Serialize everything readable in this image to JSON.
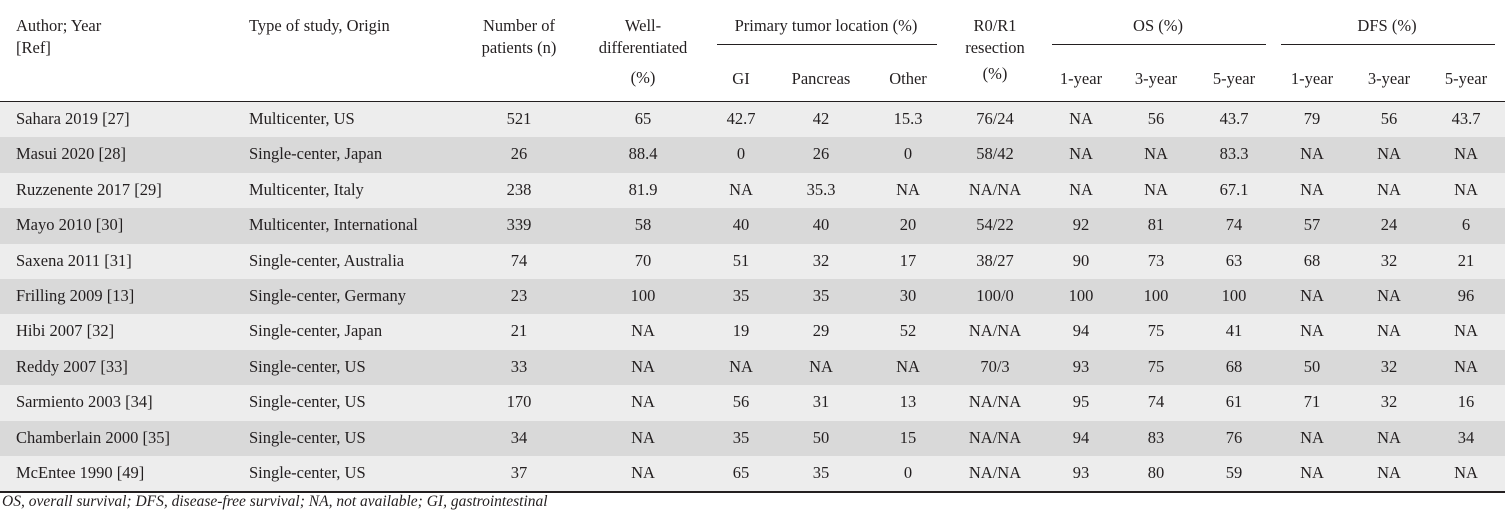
{
  "header": {
    "author_line1": "Author; Year",
    "author_line2": "[Ref]",
    "type": "Type of study, Origin",
    "npat_line1": "Number of",
    "npat_line2": "patients (n)",
    "well_line1": "Well-",
    "well_line2": "differentiated",
    "well_line3": "(%)",
    "ptl": "Primary tumor location (%)",
    "ptl_gi": "GI",
    "ptl_pancreas": "Pancreas",
    "ptl_other": "Other",
    "r0_line1": "R0/R1",
    "r0_line2": "resection",
    "r0_line3": "(%)",
    "os": "OS (%)",
    "os_1": "1-year",
    "os_3": "3-year",
    "os_5": "5-year",
    "dfs": "DFS (%)",
    "dfs_1": "1-year",
    "dfs_3": "3-year",
    "dfs_5": "5-year"
  },
  "rows": [
    [
      "Sahara 2019 [27]",
      "Multicenter, US",
      "521",
      "65",
      "42.7",
      "42",
      "15.3",
      "76/24",
      "NA",
      "56",
      "43.7",
      "79",
      "56",
      "43.7"
    ],
    [
      "Masui 2020 [28]",
      "Single-center, Japan",
      "26",
      "88.4",
      "0",
      "26",
      "0",
      "58/42",
      "NA",
      "NA",
      "83.3",
      "NA",
      "NA",
      "NA"
    ],
    [
      "Ruzzenente 2017 [29]",
      "Multicenter, Italy",
      "238",
      "81.9",
      "NA",
      "35.3",
      "NA",
      "NA/NA",
      "NA",
      "NA",
      "67.1",
      "NA",
      "NA",
      "NA"
    ],
    [
      "Mayo 2010 [30]",
      "Multicenter, International",
      "339",
      "58",
      "40",
      "40",
      "20",
      "54/22",
      "92",
      "81",
      "74",
      "57",
      "24",
      "6"
    ],
    [
      "Saxena 2011 [31]",
      "Single-center, Australia",
      "74",
      "70",
      "51",
      "32",
      "17",
      "38/27",
      "90",
      "73",
      "63",
      "68",
      "32",
      "21"
    ],
    [
      "Frilling 2009 [13]",
      "Single-center, Germany",
      "23",
      "100",
      "35",
      "35",
      "30",
      "100/0",
      "100",
      "100",
      "100",
      "NA",
      "NA",
      "96"
    ],
    [
      "Hibi 2007 [32]",
      "Single-center, Japan",
      "21",
      "NA",
      "19",
      "29",
      "52",
      "NA/NA",
      "94",
      "75",
      "41",
      "NA",
      "NA",
      "NA"
    ],
    [
      "Reddy 2007 [33]",
      "Single-center, US",
      "33",
      "NA",
      "NA",
      "NA",
      "NA",
      "70/3",
      "93",
      "75",
      "68",
      "50",
      "32",
      "NA"
    ],
    [
      "Sarmiento 2003 [34]",
      "Single-center, US",
      "170",
      "NA",
      "56",
      "31",
      "13",
      "NA/NA",
      "95",
      "74",
      "61",
      "71",
      "32",
      "16"
    ],
    [
      "Chamberlain 2000 [35]",
      "Single-center, US",
      "34",
      "NA",
      "35",
      "50",
      "15",
      "NA/NA",
      "94",
      "83",
      "76",
      "NA",
      "NA",
      "34"
    ],
    [
      "McEntee 1990 [49]",
      "Single-center, US",
      "37",
      "NA",
      "65",
      "35",
      "0",
      "NA/NA",
      "93",
      "80",
      "59",
      "NA",
      "NA",
      "NA"
    ]
  ],
  "footnote": "OS, overall survival; DFS, disease-free survival; NA, not available; GI, gastrointestinal"
}
